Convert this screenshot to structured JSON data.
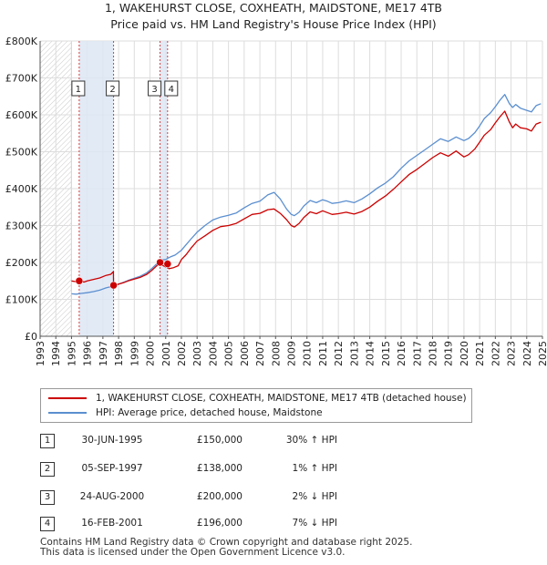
{
  "title_line1": "1, WAKEHURST CLOSE, COXHEATH, MAIDSTONE, ME17 4TB",
  "title_line2": "Price paid vs. HM Land Registry's House Price Index (HPI)",
  "chart_data": {
    "type": "line",
    "title": "1, WAKEHURST CLOSE, COXHEATH, MAIDSTONE, ME17 4TB — Price paid vs. HM Land Registry's House Price Index (HPI)",
    "xlabel": "",
    "ylabel": "",
    "xlim": [
      1993,
      2025
    ],
    "ylim": [
      0,
      800000
    ],
    "x_tick_labels": [
      "1993",
      "1994",
      "1995",
      "1996",
      "1997",
      "1998",
      "1999",
      "2000",
      "2001",
      "2002",
      "2003",
      "2004",
      "2005",
      "2006",
      "2007",
      "2008",
      "2009",
      "2010",
      "2011",
      "2012",
      "2013",
      "2014",
      "2015",
      "2016",
      "2017",
      "2018",
      "2019",
      "2020",
      "2021",
      "2022",
      "2023",
      "2024",
      "2025"
    ],
    "y_ticks": [
      0,
      100000,
      200000,
      300000,
      400000,
      500000,
      600000,
      700000,
      800000
    ],
    "y_tick_labels": [
      "£0",
      "£100K",
      "£200K",
      "£300K",
      "£400K",
      "£500K",
      "£600K",
      "£700K",
      "£800K"
    ],
    "colors": {
      "property": "#cc0000",
      "hpi": "#5b8fd0",
      "shade": "#dde6f4",
      "marker_line": "#d04040",
      "grid": "#dddddd"
    },
    "series": [
      {
        "name": "1, WAKEHURST CLOSE, COXHEATH, MAIDSTONE, ME17 4TB (detached house)",
        "color": "#cc0000",
        "x": [
          1995.0,
          1995.3,
          1995.49,
          1995.8,
          1996.0,
          1996.4,
          1996.8,
          1997.2,
          1997.5,
          1997.67,
          1997.68,
          1997.9,
          1998.3,
          1998.6,
          1999.0,
          1999.4,
          1999.8,
          2000.1,
          2000.4,
          2000.64,
          2000.8,
          2001.0,
          2001.12,
          2001.2,
          2001.5,
          2001.8,
          2002.0,
          2002.3,
          2002.6,
          2003.0,
          2003.5,
          2004.0,
          2004.5,
          2005.0,
          2005.5,
          2006.0,
          2006.5,
          2007.0,
          2007.5,
          2007.9,
          2008.3,
          2008.7,
          2009.0,
          2009.2,
          2009.5,
          2009.8,
          2010.2,
          2010.6,
          2011.0,
          2011.3,
          2011.6,
          2012.0,
          2012.5,
          2013.0,
          2013.5,
          2014.0,
          2014.5,
          2015.0,
          2015.5,
          2016.0,
          2016.5,
          2017.0,
          2017.5,
          2018.0,
          2018.5,
          2019.0,
          2019.5,
          2020.0,
          2020.3,
          2020.7,
          2021.0,
          2021.3,
          2021.7,
          2022.0,
          2022.3,
          2022.6,
          2022.9,
          2023.1,
          2023.3,
          2023.6,
          2024.0,
          2024.3,
          2024.6,
          2024.9
        ],
        "y": [
          150000,
          148000,
          150000,
          147000,
          150000,
          154000,
          158000,
          165000,
          168000,
          175000,
          138000,
          140000,
          145000,
          150000,
          155000,
          160000,
          168000,
          178000,
          190000,
          200000,
          192000,
          188000,
          196000,
          183000,
          186000,
          191000,
          208000,
          221000,
          238000,
          258000,
          272000,
          287000,
          297000,
          300000,
          306000,
          318000,
          330000,
          333000,
          343000,
          345000,
          333000,
          316000,
          300000,
          296000,
          306000,
          322000,
          337000,
          332000,
          340000,
          335000,
          330000,
          332000,
          336000,
          331000,
          338000,
          350000,
          366000,
          380000,
          398000,
          418000,
          438000,
          452000,
          468000,
          484000,
          497000,
          488000,
          502000,
          486000,
          492000,
          508000,
          526000,
          545000,
          560000,
          578000,
          595000,
          610000,
          580000,
          565000,
          575000,
          565000,
          562000,
          556000,
          575000,
          580000
        ]
      },
      {
        "name": "HPI: Average price, detached house, Maidstone",
        "color": "#5b8fd0",
        "x": [
          1995.0,
          1995.3,
          1995.6,
          1996.0,
          1996.4,
          1996.8,
          1997.2,
          1997.67,
          1998.0,
          1998.3,
          1998.6,
          1999.0,
          1999.4,
          1999.8,
          2000.1,
          2000.4,
          2000.64,
          2000.8,
          2001.0,
          2001.12,
          2001.3,
          2001.6,
          2002.0,
          2002.3,
          2002.6,
          2003.0,
          2003.5,
          2004.0,
          2004.5,
          2005.0,
          2005.5,
          2006.0,
          2006.5,
          2007.0,
          2007.5,
          2007.9,
          2008.3,
          2008.7,
          2009.0,
          2009.2,
          2009.5,
          2009.8,
          2010.2,
          2010.6,
          2011.0,
          2011.3,
          2011.6,
          2012.0,
          2012.5,
          2013.0,
          2013.5,
          2014.0,
          2014.5,
          2015.0,
          2015.5,
          2016.0,
          2016.5,
          2017.0,
          2017.5,
          2018.0,
          2018.5,
          2019.0,
          2019.5,
          2020.0,
          2020.3,
          2020.7,
          2021.0,
          2021.3,
          2021.7,
          2022.0,
          2022.3,
          2022.6,
          2022.9,
          2023.1,
          2023.3,
          2023.6,
          2024.0,
          2024.3,
          2024.6,
          2024.9
        ],
        "y": [
          115000,
          114000,
          116000,
          118000,
          121000,
          125000,
          131000,
          136000,
          141000,
          146000,
          151000,
          157000,
          163000,
          172000,
          183000,
          195000,
          204000,
          207000,
          208000,
          211000,
          215000,
          220000,
          233000,
          248000,
          263000,
          282000,
          300000,
          315000,
          323000,
          328000,
          334000,
          348000,
          360000,
          366000,
          383000,
          390000,
          372000,
          345000,
          330000,
          327000,
          336000,
          353000,
          368000,
          362000,
          370000,
          366000,
          360000,
          362000,
          367000,
          362000,
          372000,
          386000,
          402000,
          415000,
          432000,
          455000,
          475000,
          490000,
          505000,
          520000,
          535000,
          528000,
          540000,
          530000,
          536000,
          552000,
          570000,
          590000,
          606000,
          622000,
          640000,
          655000,
          630000,
          620000,
          628000,
          618000,
          612000,
          608000,
          625000,
          630000
        ]
      }
    ],
    "sales": [
      {
        "label": "1",
        "x": 1995.49,
        "price": 150000
      },
      {
        "label": "2",
        "x": 1997.68,
        "price": 138000
      },
      {
        "label": "3",
        "x": 2000.64,
        "price": 200000
      },
      {
        "label": "4",
        "x": 2001.12,
        "price": 196000
      }
    ],
    "shaded_ranges": [
      [
        1995.49,
        1997.68
      ],
      [
        2000.64,
        2001.12
      ]
    ],
    "hatched_range": [
      1993,
      1995
    ]
  },
  "legend": {
    "property_label": "1, WAKEHURST CLOSE, COXHEATH, MAIDSTONE, ME17 4TB (detached house)",
    "hpi_label": "HPI: Average price, detached house, Maidstone"
  },
  "transactions": [
    {
      "num": "1",
      "date": "30-JUN-1995",
      "price": "£150,000",
      "hpi": "30% ↑ HPI"
    },
    {
      "num": "2",
      "date": "05-SEP-1997",
      "price": "£138,000",
      "hpi": "1% ↑ HPI"
    },
    {
      "num": "3",
      "date": "24-AUG-2000",
      "price": "£200,000",
      "hpi": "2% ↓ HPI"
    },
    {
      "num": "4",
      "date": "16-FEB-2001",
      "price": "£196,000",
      "hpi": "7% ↓ HPI"
    }
  ],
  "footer_line1": "Contains HM Land Registry data © Crown copyright and database right 2025.",
  "footer_line2": "This data is licensed under the Open Government Licence v3.0."
}
